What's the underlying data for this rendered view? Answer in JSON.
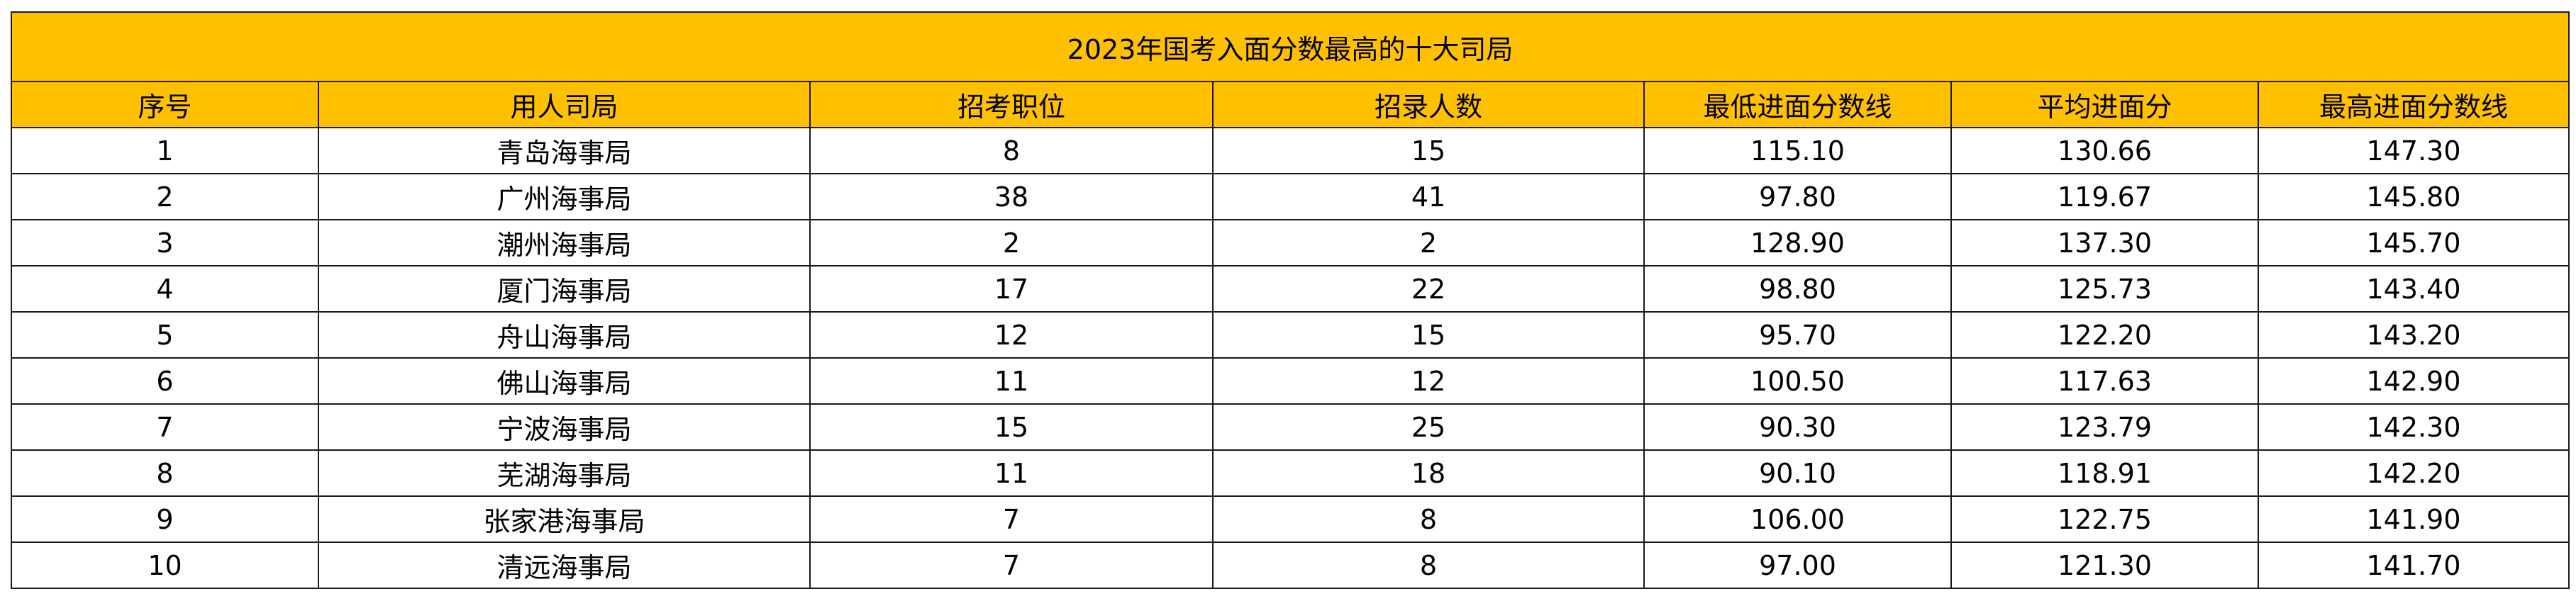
{
  "title": "2023年国考入面分数最高的十大司局",
  "colors": {
    "header_bg": "#FFC000",
    "border": "#1a1a1a"
  },
  "columns": [
    "序号",
    "用人司局",
    "招考职位",
    "招录人数",
    "最低进面分数线",
    "平均进面分",
    "最高进面分数线"
  ],
  "rows": [
    [
      "1",
      "青岛海事局",
      "8",
      "15",
      "115.10",
      "130.66",
      "147.30"
    ],
    [
      "2",
      "广州海事局",
      "38",
      "41",
      "97.80",
      "119.67",
      "145.80"
    ],
    [
      "3",
      "潮州海事局",
      "2",
      "2",
      "128.90",
      "137.30",
      "145.70"
    ],
    [
      "4",
      "厦门海事局",
      "17",
      "22",
      "98.80",
      "125.73",
      "143.40"
    ],
    [
      "5",
      "舟山海事局",
      "12",
      "15",
      "95.70",
      "122.20",
      "143.20"
    ],
    [
      "6",
      "佛山海事局",
      "11",
      "12",
      "100.50",
      "117.63",
      "142.90"
    ],
    [
      "7",
      "宁波海事局",
      "15",
      "25",
      "90.30",
      "123.79",
      "142.30"
    ],
    [
      "8",
      "芜湖海事局",
      "11",
      "18",
      "90.10",
      "118.91",
      "142.20"
    ],
    [
      "9",
      "张家港海事局",
      "7",
      "8",
      "106.00",
      "122.75",
      "141.90"
    ],
    [
      "10",
      "清远海事局",
      "7",
      "8",
      "97.00",
      "121.30",
      "141.70"
    ]
  ]
}
